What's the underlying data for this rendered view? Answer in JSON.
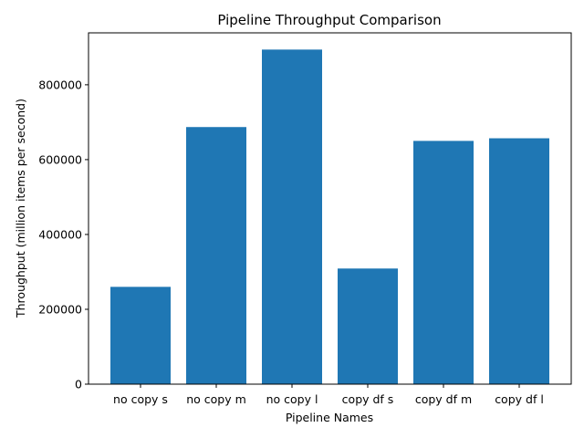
{
  "chart_data": {
    "type": "bar",
    "title": "Pipeline Throughput Comparison",
    "xlabel": "Pipeline Names",
    "ylabel": "Throughput (million items per second)",
    "categories": [
      "no copy s",
      "no copy m",
      "no copy l",
      "copy df s",
      "copy df m",
      "copy df l"
    ],
    "values": [
      260000,
      687000,
      894000,
      309000,
      650000,
      657000
    ],
    "ylim": [
      0,
      938700
    ],
    "yticks": [
      0,
      200000,
      400000,
      600000,
      800000
    ],
    "ytick_labels": [
      "0",
      "200000",
      "400000",
      "600000",
      "800000"
    ],
    "bar_color": "#1f77b4",
    "grid": false,
    "legend": "none"
  }
}
